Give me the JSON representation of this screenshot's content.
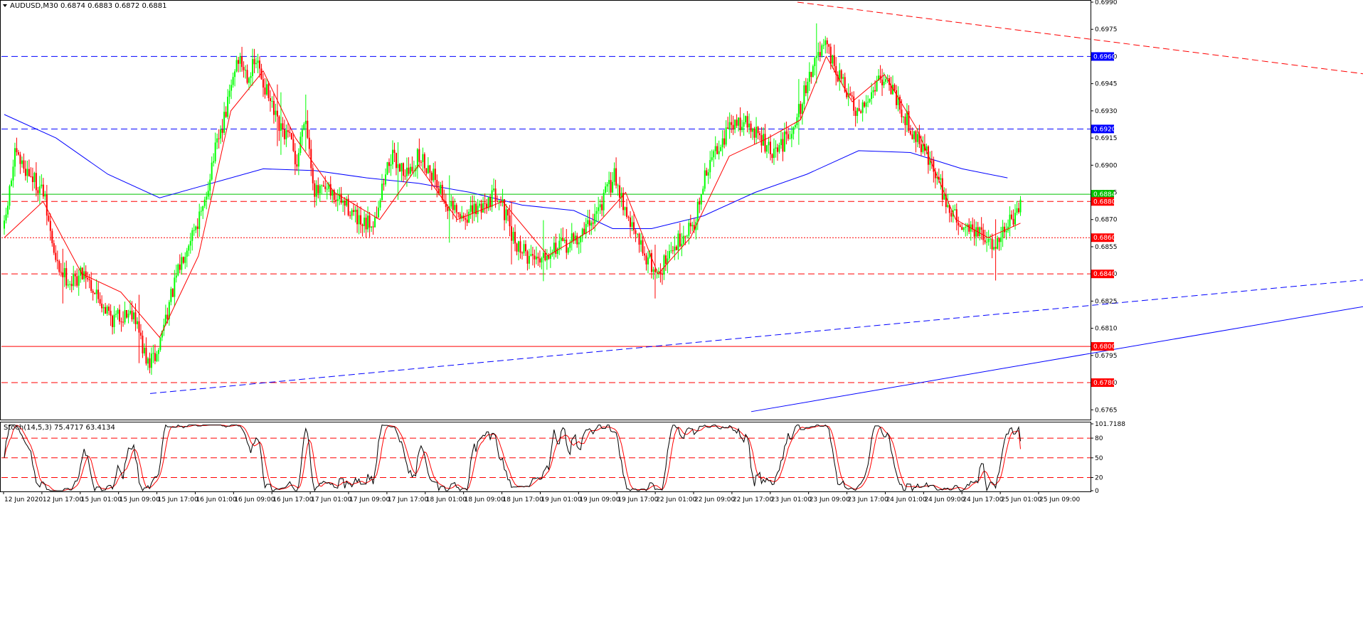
{
  "window": {
    "symbol_header": "AUDUSD,M30  0.6874 0.6883 0.6872 0.6881",
    "stoch_header": "Stoch(14,5,3) 75.4717 63.4134"
  },
  "colors": {
    "bull": "#00ff00",
    "bear": "#ff0000",
    "fast_ma": "#ff0000",
    "slow_ma": "#0000ff",
    "stoch_main": "#000000",
    "stoch_signal": "#ff0000"
  },
  "chart_data": [
    {
      "type": "candlestick",
      "title": "AUDUSD,M30",
      "ylim": [
        0.676,
        0.699
      ],
      "y_ticks": [
        "0.6990",
        "0.6975",
        "0.6960",
        "0.6945",
        "0.6930",
        "0.6915",
        "0.6900",
        "0.6885",
        "0.6870",
        "0.6855",
        "0.6840",
        "0.6825",
        "0.6810",
        "0.6795",
        "0.6780",
        "0.6765"
      ],
      "x_ticks": [
        "12 Jun 2020",
        "12 Jun 17:00",
        "15 Jun 01:00",
        "15 Jun 09:00",
        "15 Jun 17:00",
        "16 Jun 01:00",
        "16 Jun 09:00",
        "16 Jun 17:00",
        "17 Jun 01:00",
        "17 Jun 09:00",
        "17 Jun 17:00",
        "18 Jun 01:00",
        "18 Jun 09:00",
        "18 Jun 17:00",
        "19 Jun 01:00",
        "19 Jun 09:00",
        "19 Jun 17:00",
        "22 Jun 01:00",
        "22 Jun 09:00",
        "22 Jun 17:00",
        "23 Jun 01:00",
        "23 Jun 09:00",
        "23 Jun 17:00",
        "24 Jun 01:00",
        "24 Jun 09:00",
        "24 Jun 17:00",
        "25 Jun 01:00",
        "25 Jun 09:00"
      ],
      "bars": 574,
      "last_ohlc": {
        "open": 0.6874,
        "high": 0.6883,
        "low": 0.6872,
        "close": 0.6881
      },
      "close_path": [
        [
          0,
          0.6865
        ],
        [
          8,
          0.6905
        ],
        [
          20,
          0.6895
        ],
        [
          30,
          0.6885
        ],
        [
          40,
          0.6845
        ],
        [
          52,
          0.6835
        ],
        [
          62,
          0.6842
        ],
        [
          70,
          0.683
        ],
        [
          84,
          0.6815
        ],
        [
          100,
          0.682
        ],
        [
          110,
          0.679
        ],
        [
          118,
          0.6795
        ],
        [
          124,
          0.6815
        ],
        [
          132,
          0.6835
        ],
        [
          140,
          0.6855
        ],
        [
          146,
          0.6865
        ],
        [
          154,
          0.6875
        ],
        [
          160,
          0.69
        ],
        [
          170,
          0.6925
        ],
        [
          180,
          0.696
        ],
        [
          188,
          0.695
        ],
        [
          195,
          0.6957
        ],
        [
          205,
          0.6935
        ],
        [
          212,
          0.692
        ],
        [
          220,
          0.6915
        ],
        [
          226,
          0.69
        ],
        [
          232,
          0.693
        ],
        [
          240,
          0.6885
        ],
        [
          250,
          0.6885
        ],
        [
          260,
          0.688
        ],
        [
          268,
          0.6875
        ],
        [
          276,
          0.6865
        ],
        [
          286,
          0.687
        ],
        [
          298,
          0.6905
        ],
        [
          312,
          0.6895
        ],
        [
          320,
          0.6905
        ],
        [
          332,
          0.6895
        ],
        [
          340,
          0.688
        ],
        [
          352,
          0.687
        ],
        [
          364,
          0.6875
        ],
        [
          372,
          0.688
        ],
        [
          382,
          0.6885
        ],
        [
          392,
          0.686
        ],
        [
          404,
          0.685
        ],
        [
          414,
          0.685
        ],
        [
          424,
          0.6855
        ],
        [
          432,
          0.6855
        ],
        [
          444,
          0.686
        ],
        [
          454,
          0.687
        ],
        [
          462,
          0.688
        ],
        [
          472,
          0.6895
        ],
        [
          480,
          0.6875
        ],
        [
          488,
          0.686
        ],
        [
          496,
          0.685
        ],
        [
          504,
          0.684
        ],
        [
          514,
          0.685
        ],
        [
          522,
          0.686
        ],
        [
          534,
          0.687
        ],
        [
          540,
          0.689
        ],
        [
          550,
          0.691
        ],
        [
          560,
          0.692
        ],
        [
          570,
          0.6925
        ],
        [
          584,
          0.6915
        ],
        [
          594,
          0.6905
        ],
        [
          604,
          0.6915
        ],
        [
          614,
          0.693
        ],
        [
          624,
          0.6955
        ],
        [
          634,
          0.6965
        ],
        [
          644,
          0.695
        ],
        [
          654,
          0.6935
        ],
        [
          660,
          0.6925
        ],
        [
          666,
          0.6935
        ],
        [
          676,
          0.695
        ],
        [
          684,
          0.6945
        ],
        [
          694,
          0.693
        ],
        [
          702,
          0.6918
        ],
        [
          710,
          0.691
        ],
        [
          720,
          0.6895
        ],
        [
          730,
          0.6875
        ],
        [
          738,
          0.6868
        ],
        [
          748,
          0.6865
        ],
        [
          756,
          0.686
        ],
        [
          764,
          0.6855
        ],
        [
          772,
          0.6865
        ],
        [
          780,
          0.687
        ],
        [
          785,
          0.6875
        ]
      ],
      "moving_averages": [
        {
          "name": "MA fast",
          "color": "#ff0000",
          "points": [
            [
              0,
              0.686
            ],
            [
              30,
              0.688
            ],
            [
              60,
              0.684
            ],
            [
              90,
              0.683
            ],
            [
              120,
              0.6805
            ],
            [
              150,
              0.685
            ],
            [
              175,
              0.693
            ],
            [
              200,
              0.6952
            ],
            [
              225,
              0.6915
            ],
            [
              255,
              0.6885
            ],
            [
              290,
              0.687
            ],
            [
              320,
              0.69
            ],
            [
              350,
              0.687
            ],
            [
              385,
              0.688
            ],
            [
              420,
              0.685
            ],
            [
              455,
              0.6865
            ],
            [
              480,
              0.6885
            ],
            [
              505,
              0.684
            ],
            [
              530,
              0.686
            ],
            [
              560,
              0.6905
            ],
            [
              590,
              0.6915
            ],
            [
              615,
              0.6925
            ],
            [
              635,
              0.696
            ],
            [
              655,
              0.6935
            ],
            [
              680,
              0.695
            ],
            [
              705,
              0.692
            ],
            [
              735,
              0.687
            ],
            [
              760,
              0.686
            ],
            [
              785,
              0.6868
            ]
          ]
        },
        {
          "name": "MA slow",
          "color": "#0000ff",
          "points": [
            [
              0,
              0.6928
            ],
            [
              40,
              0.6915
            ],
            [
              80,
              0.6895
            ],
            [
              120,
              0.6882
            ],
            [
              160,
              0.689
            ],
            [
              200,
              0.6898
            ],
            [
              240,
              0.6897
            ],
            [
              280,
              0.6893
            ],
            [
              320,
              0.689
            ],
            [
              360,
              0.6885
            ],
            [
              400,
              0.6878
            ],
            [
              440,
              0.6875
            ],
            [
              470,
              0.6865
            ],
            [
              500,
              0.6865
            ],
            [
              540,
              0.6872
            ],
            [
              580,
              0.6885
            ],
            [
              620,
              0.6895
            ],
            [
              660,
              0.6908
            ],
            [
              700,
              0.6907
            ],
            [
              740,
              0.6898
            ],
            [
              775,
              0.6893
            ]
          ]
        }
      ],
      "levels": [
        {
          "price": 0.696,
          "label": "0.6960",
          "color": "#0000ff",
          "style": "dashed",
          "tag_bg": "#0000ff"
        },
        {
          "price": 0.692,
          "label": "0.6920",
          "color": "#0000ff",
          "style": "dashed",
          "tag_bg": "#0000ff"
        },
        {
          "price": 0.6884,
          "label": "0.6884",
          "color": "#00c000",
          "style": "solid",
          "tag_bg": "#00c000"
        },
        {
          "price": 0.688,
          "label": "0.6880",
          "color": "#ff0000",
          "style": "dashed",
          "tag_bg": "#ff0000"
        },
        {
          "price": 0.686,
          "label": "0.6860",
          "color": "#ff0000",
          "style": "dotted",
          "tag_bg": "#ff0000"
        },
        {
          "price": 0.684,
          "label": "0.6840",
          "color": "#ff0000",
          "style": "dashed",
          "tag_bg": "#ff0000"
        },
        {
          "price": 0.68,
          "label": "0.6800",
          "color": "#ff0000",
          "style": "solid",
          "tag_bg": "#ff0000"
        },
        {
          "price": 0.678,
          "label": "0.6780",
          "color": "#ff0000",
          "style": "dashed",
          "tag_bg": "#ff0000"
        }
      ],
      "trendlines": [
        {
          "from": [
            446,
            0.699
          ],
          "to": [
            800,
            0.6946
          ],
          "color": "#ff0000",
          "style": "dashed"
        },
        {
          "from": [
            82,
            0.6774
          ],
          "to": [
            800,
            0.684
          ],
          "color": "#0000ff",
          "style": "dashed"
        },
        {
          "from": [
            420,
            0.6764
          ],
          "to": [
            800,
            0.6828
          ],
          "color": "#0000ff",
          "style": "solid"
        }
      ]
    },
    {
      "type": "line",
      "title": "Stoch(14,5,3)",
      "ylim": [
        0,
        101.7188
      ],
      "y_ticks": [
        "101.7188",
        "80",
        "50",
        "20",
        "0"
      ],
      "levels": [
        80,
        50,
        20
      ],
      "series": [
        {
          "name": "main",
          "value": 75.4717,
          "color": "#000000"
        },
        {
          "name": "signal",
          "value": 63.4134,
          "color": "#ff0000"
        }
      ]
    }
  ]
}
